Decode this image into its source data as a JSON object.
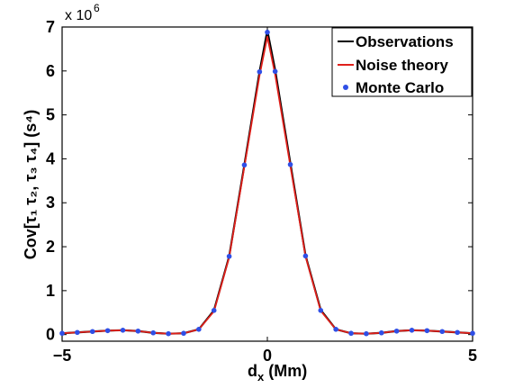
{
  "chart_data": {
    "type": "line",
    "xlabel_main": "d",
    "xlabel_sub": "x",
    "xlabel_unit": " (Mm)",
    "ylabel": "Cov[τ₁ τ₂, τ₃ τ₄] (s⁴)",
    "y_multiplier": "x 10",
    "y_multiplier_exp": "6",
    "xlim": [
      -5,
      5
    ],
    "ylim": [
      -0.15,
      7
    ],
    "x_ticks": [
      -5,
      0,
      5
    ],
    "x_tick_labels": [
      "−5",
      "0",
      "5"
    ],
    "y_ticks": [
      0,
      1,
      2,
      3,
      4,
      5,
      6,
      7
    ],
    "y_tick_labels": [
      "0",
      "1",
      "2",
      "3",
      "4",
      "5",
      "6",
      "7"
    ],
    "grid": false,
    "legend_position": "top-right",
    "x": [
      -5.0,
      -4.63,
      -4.26,
      -3.89,
      -3.52,
      -3.15,
      -2.78,
      -2.41,
      -2.04,
      -1.67,
      -1.3,
      -0.93,
      -0.56,
      -0.19,
      0.0,
      0.19,
      0.56,
      0.93,
      1.3,
      1.67,
      2.04,
      2.41,
      2.78,
      3.15,
      3.52,
      3.89,
      4.26,
      4.63,
      5.0
    ],
    "series": [
      {
        "name": "Observations",
        "style": "line",
        "color": "#000000",
        "values": [
          0.03,
          0.05,
          0.07,
          0.09,
          0.1,
          0.08,
          0.04,
          0.02,
          0.03,
          0.12,
          0.55,
          1.78,
          3.86,
          5.98,
          6.92,
          6.02,
          3.9,
          1.8,
          0.56,
          0.12,
          0.03,
          0.02,
          0.04,
          0.08,
          0.1,
          0.09,
          0.07,
          0.05,
          0.03
        ]
      },
      {
        "name": "Noise theory",
        "style": "line",
        "color": "#e0201b",
        "values": [
          0.03,
          0.05,
          0.07,
          0.09,
          0.1,
          0.08,
          0.04,
          0.02,
          0.03,
          0.12,
          0.53,
          1.76,
          3.82,
          5.9,
          6.78,
          5.92,
          3.84,
          1.78,
          0.54,
          0.12,
          0.03,
          0.02,
          0.04,
          0.08,
          0.1,
          0.09,
          0.07,
          0.05,
          0.03
        ]
      },
      {
        "name": "Monte Carlo",
        "style": "markers",
        "color": "#2f4fe6",
        "values": [
          0.03,
          0.05,
          0.07,
          0.09,
          0.1,
          0.08,
          0.04,
          0.02,
          0.03,
          0.12,
          0.55,
          1.78,
          3.86,
          5.98,
          6.88,
          5.99,
          3.87,
          1.79,
          0.55,
          0.12,
          0.03,
          0.02,
          0.04,
          0.08,
          0.1,
          0.09,
          0.07,
          0.05,
          0.03
        ]
      }
    ]
  }
}
